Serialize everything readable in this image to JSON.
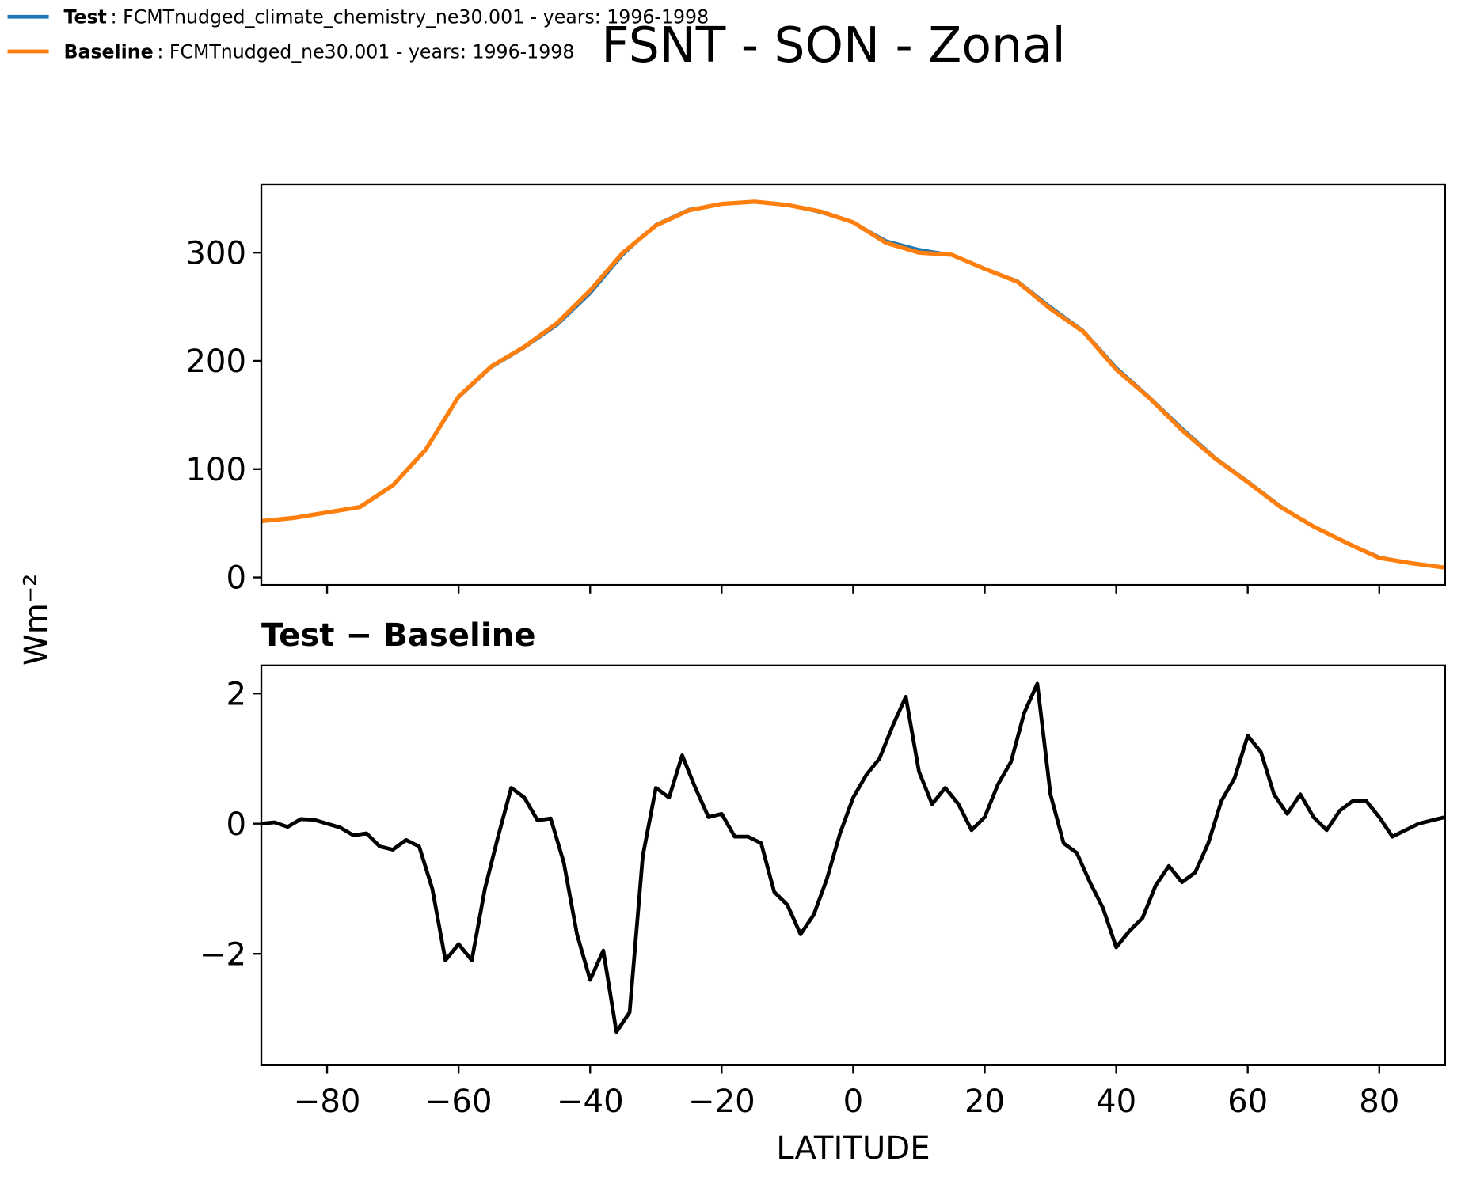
{
  "chart_data": [
    {
      "type": "line",
      "title": "FSNT - SON - Zonal",
      "y_label": "Wm⁻²",
      "x": [
        -90,
        -85,
        -80,
        -75,
        -70,
        -65,
        -60,
        -55,
        -50,
        -45,
        -40,
        -35,
        -30,
        -25,
        -20,
        -15,
        -10,
        -5,
        0,
        5,
        10,
        15,
        20,
        25,
        30,
        35,
        40,
        45,
        50,
        55,
        60,
        65,
        70,
        75,
        80,
        85,
        90
      ],
      "series": [
        {
          "name": "Test",
          "description": ": FCMTnudged_climate_chemistry_ne30.001 - years: 1996-1998",
          "color": "#1f77b4",
          "values": [
            52,
            55,
            60,
            65,
            85,
            118,
            166,
            194,
            212,
            233,
            262,
            298,
            326,
            340,
            345,
            347,
            344,
            337,
            328,
            311,
            303,
            298,
            285,
            274,
            250,
            228,
            194,
            167,
            138,
            111,
            89,
            66,
            47,
            32,
            19,
            13,
            9
          ]
        },
        {
          "name": "Baseline",
          "description": ": FCMTnudged_ne30.001 - years: 1996-1998",
          "color": "#ff7f0e",
          "values": [
            52,
            55,
            60,
            65,
            85,
            118,
            167,
            195,
            213,
            235,
            265,
            300,
            325,
            339,
            345,
            347,
            344,
            338,
            328,
            309,
            300,
            298,
            285,
            273,
            248,
            227,
            192,
            166,
            136,
            110,
            88,
            65,
            47,
            32,
            18,
            13,
            9
          ]
        }
      ],
      "xlim": [
        -90,
        90
      ],
      "xticks": [
        -80,
        -60,
        -40,
        -20,
        0,
        20,
        40,
        60,
        80
      ],
      "xtick_labels": false,
      "ylim": [
        -7,
        363
      ],
      "yticks": [
        0,
        100,
        200,
        300
      ]
    },
    {
      "type": "line",
      "title": "Test − Baseline",
      "x_label": "LATITUDE",
      "x": [
        -90,
        -88,
        -86,
        -84,
        -82,
        -80,
        -78,
        -76,
        -74,
        -72,
        -70,
        -68,
        -66,
        -64,
        -62,
        -60,
        -58,
        -56,
        -54,
        -52,
        -50,
        -48,
        -46,
        -44,
        -42,
        -40,
        -38,
        -36,
        -34,
        -32,
        -30,
        -28,
        -26,
        -24,
        -22,
        -20,
        -18,
        -16,
        -14,
        -12,
        -10,
        -8,
        -6,
        -4,
        -2,
        0,
        2,
        4,
        6,
        8,
        10,
        12,
        14,
        16,
        18,
        20,
        22,
        24,
        26,
        28,
        30,
        32,
        34,
        36,
        38,
        40,
        42,
        44,
        46,
        48,
        50,
        52,
        54,
        56,
        58,
        60,
        62,
        64,
        66,
        68,
        70,
        72,
        74,
        76,
        78,
        80,
        82,
        84,
        86,
        88,
        90
      ],
      "series": [
        {
          "color": "#000000",
          "values": [
            0.0,
            0.02,
            -0.05,
            0.07,
            0.06,
            0.0,
            -0.06,
            -0.18,
            -0.15,
            -0.35,
            -0.4,
            -0.25,
            -0.35,
            -1.0,
            -2.1,
            -1.85,
            -2.1,
            -1.0,
            -0.2,
            0.55,
            0.4,
            0.05,
            0.08,
            -0.6,
            -1.7,
            -2.4,
            -1.95,
            -3.2,
            -2.9,
            -0.5,
            0.55,
            0.4,
            1.05,
            0.55,
            0.1,
            0.15,
            -0.2,
            -0.2,
            -0.3,
            -1.05,
            -1.25,
            -1.7,
            -1.4,
            -0.85,
            -0.15,
            0.4,
            0.75,
            1.0,
            1.5,
            1.95,
            0.8,
            0.3,
            0.55,
            0.3,
            -0.1,
            0.1,
            0.6,
            0.95,
            1.7,
            2.15,
            0.45,
            -0.3,
            -0.45,
            -0.9,
            -1.3,
            -1.9,
            -1.65,
            -1.45,
            -0.95,
            -0.65,
            -0.9,
            -0.75,
            -0.3,
            0.35,
            0.7,
            1.35,
            1.1,
            0.45,
            0.15,
            0.45,
            0.1,
            -0.1,
            0.2,
            0.35,
            0.35,
            0.1,
            -0.2,
            -0.1,
            0.0,
            0.05,
            0.1
          ]
        }
      ],
      "xlim": [
        -90,
        90
      ],
      "xticks": [
        {
          "value": -80,
          "label": "−80"
        },
        {
          "value": -60,
          "label": "−60"
        },
        {
          "value": -40,
          "label": "−40"
        },
        {
          "value": -20,
          "label": "−20"
        },
        0,
        20,
        40,
        60,
        80
      ],
      "ylim": [
        -3.71,
        2.43
      ],
      "yticks": [
        {
          "value": -2,
          "label": "−2"
        },
        0,
        2
      ]
    }
  ]
}
